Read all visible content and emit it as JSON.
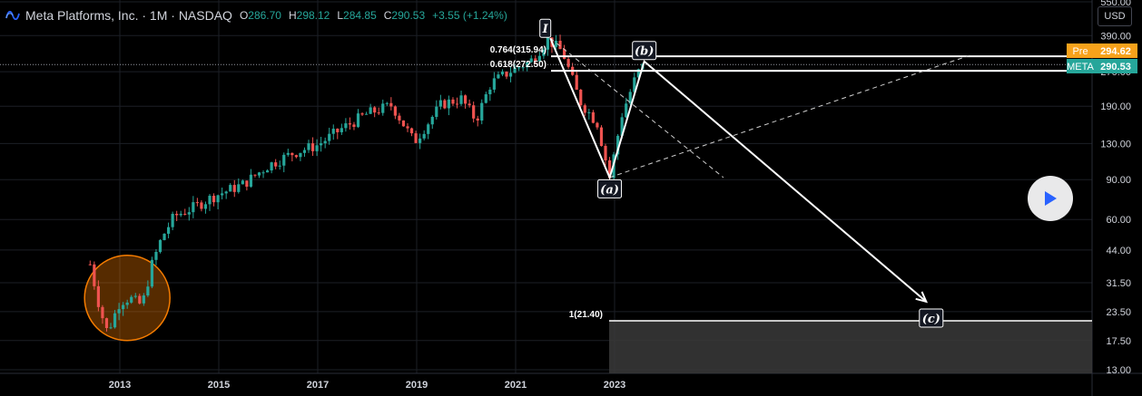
{
  "header": {
    "symbol_title": "Meta Platforms, Inc. · 1M · NASDAQ",
    "open_label": "O",
    "open": "286.70",
    "high_label": "H",
    "high": "298.12",
    "low_label": "L",
    "low": "284.85",
    "close_label": "C",
    "close": "290.53",
    "change": "+3.55 (+1.24%)",
    "currency": "USD"
  },
  "price_tags": [
    {
      "label": "Pre",
      "value": "294.62",
      "color": "#f7a21b"
    },
    {
      "label": "META",
      "value": "290.53",
      "color": "#26a69a"
    }
  ],
  "chart_data": {
    "type": "candlestick",
    "y_scale": "log",
    "ylim": [
      13,
      550
    ],
    "y_ticks": [
      "550.00",
      "390.00",
      "270.00",
      "190.00",
      "130.00",
      "90.00",
      "60.00",
      "44.00",
      "31.50",
      "23.50",
      "17.50",
      "13.00"
    ],
    "x_ticks": [
      "2013",
      "2015",
      "2017",
      "2019",
      "2021",
      "2023"
    ],
    "colors": {
      "up": "#26a69a",
      "down": "#ef5350",
      "grid": "#1c1f26",
      "text": "#d1d4dc"
    },
    "path_samples": [
      {
        "t": 2012.4,
        "p": 38
      },
      {
        "t": 2012.6,
        "p": 24
      },
      {
        "t": 2012.75,
        "p": 19
      },
      {
        "t": 2013.0,
        "p": 26
      },
      {
        "t": 2013.2,
        "p": 27
      },
      {
        "t": 2013.45,
        "p": 25
      },
      {
        "t": 2013.65,
        "p": 38
      },
      {
        "t": 2013.85,
        "p": 50
      },
      {
        "t": 2014.1,
        "p": 62
      },
      {
        "t": 2014.5,
        "p": 68
      },
      {
        "t": 2014.9,
        "p": 76
      },
      {
        "t": 2015.5,
        "p": 86
      },
      {
        "t": 2016.0,
        "p": 104
      },
      {
        "t": 2016.5,
        "p": 118
      },
      {
        "t": 2017.0,
        "p": 128
      },
      {
        "t": 2017.5,
        "p": 152
      },
      {
        "t": 2018.0,
        "p": 176
      },
      {
        "t": 2018.5,
        "p": 192
      },
      {
        "t": 2018.95,
        "p": 132
      },
      {
        "t": 2019.5,
        "p": 194
      },
      {
        "t": 2019.9,
        "p": 205
      },
      {
        "t": 2020.2,
        "p": 165
      },
      {
        "t": 2020.5,
        "p": 240
      },
      {
        "t": 2020.9,
        "p": 272
      },
      {
        "t": 2021.3,
        "p": 300
      },
      {
        "t": 2021.65,
        "p": 375
      },
      {
        "t": 2021.95,
        "p": 330
      },
      {
        "t": 2022.3,
        "p": 200
      },
      {
        "t": 2022.65,
        "p": 160
      },
      {
        "t": 2022.9,
        "p": 92
      },
      {
        "t": 2023.15,
        "p": 175
      },
      {
        "t": 2023.45,
        "p": 264
      },
      {
        "t": 2023.6,
        "p": 290
      }
    ],
    "fib_levels": [
      {
        "label": "0.764(315.94)",
        "value": 315.94
      },
      {
        "label": "0.618(272.50)",
        "value": 272.5
      },
      {
        "label": "1(21.40)",
        "value": 21.4
      }
    ],
    "wave_labels": [
      {
        "label": "I",
        "t": 2021.6,
        "p": 420
      },
      {
        "label": "(a)",
        "t": 2022.9,
        "p": 82
      },
      {
        "label": "(b)",
        "t": 2023.6,
        "p": 335
      },
      {
        "label": "(c)",
        "t": 2029.4,
        "p": 22
      }
    ],
    "projection_path": [
      {
        "t": 2021.7,
        "p": 380
      },
      {
        "t": 2022.9,
        "p": 92
      },
      {
        "t": 2023.6,
        "p": 300
      },
      {
        "t": 2029.3,
        "p": 26
      }
    ],
    "dashed_lines": [
      {
        "from": {
          "t": 2022.9,
          "p": 92
        },
        "to": {
          "t": 2030.2,
          "p": 320
        }
      },
      {
        "from": {
          "t": 2021.7,
          "p": 380
        },
        "to": {
          "t": 2025.2,
          "p": 92
        }
      }
    ],
    "highlight_circle": {
      "t": 2013.15,
      "p": 27
    }
  }
}
